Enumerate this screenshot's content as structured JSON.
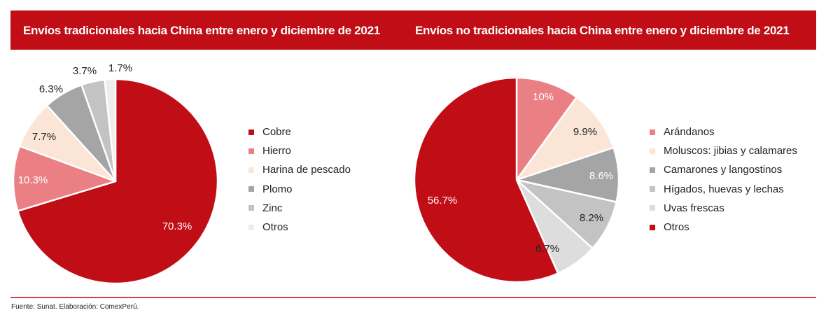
{
  "chart_data": [
    {
      "type": "pie",
      "title": "Envíos tradicionales hacia China entre enero y diciembre de 2021",
      "categories": [
        "Cobre",
        "Hierro",
        "Harina de pescado",
        "Plomo",
        "Zinc",
        "Otros"
      ],
      "values": [
        70.3,
        10.3,
        7.7,
        6.3,
        3.7,
        1.7
      ],
      "labels": [
        "70.3%",
        "10.3%",
        "7.7%",
        "6.3%",
        "3.7%",
        "1.7%"
      ],
      "colors": [
        "#c00d16",
        "#ea8084",
        "#fbe5d6",
        "#a5a5a5",
        "#c3c3c3",
        "#ededed"
      ],
      "label_colors": [
        "#ffffff",
        "#ffffff",
        "#222222",
        "#222222",
        "#222222",
        "#222222"
      ],
      "legend_position": "right"
    },
    {
      "type": "pie",
      "title": "Envíos no tradicionales hacia China entre enero y diciembre de 2021",
      "categories": [
        "Arándanos",
        "Moluscos: jibias y calamares",
        "Camarones y langostinos",
        "Hígados, huevas y lechas",
        "Uvas frescas",
        "Otros"
      ],
      "values": [
        10,
        9.9,
        8.6,
        8.2,
        6.7,
        56.7
      ],
      "labels": [
        "10%",
        "9.9%",
        "8.6%",
        "8.2%",
        "6.7%",
        "56.7%"
      ],
      "colors": [
        "#ea8084",
        "#fbe5d6",
        "#a5a5a5",
        "#c3c3c3",
        "#dddddd",
        "#c00d16"
      ],
      "label_colors": [
        "#ffffff",
        "#222222",
        "#ffffff",
        "#222222",
        "#222222",
        "#ffffff"
      ],
      "legend_position": "right"
    }
  ],
  "footer": {
    "source": "Fuente: Sunat. Elaboración: ComexPerú."
  }
}
